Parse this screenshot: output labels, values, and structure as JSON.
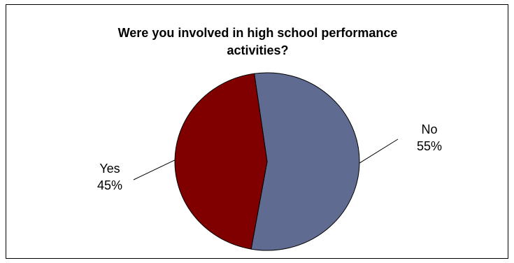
{
  "chart_data": {
    "type": "pie",
    "title_lines": [
      "Were you involved in high school performance",
      "activities?"
    ],
    "slices": [
      {
        "label": "No",
        "value": 55,
        "value_label": "55%",
        "color": "#5f6b91"
      },
      {
        "label": "Yes",
        "value": 45,
        "value_label": "45%",
        "color": "#800000"
      }
    ],
    "legend": false
  }
}
